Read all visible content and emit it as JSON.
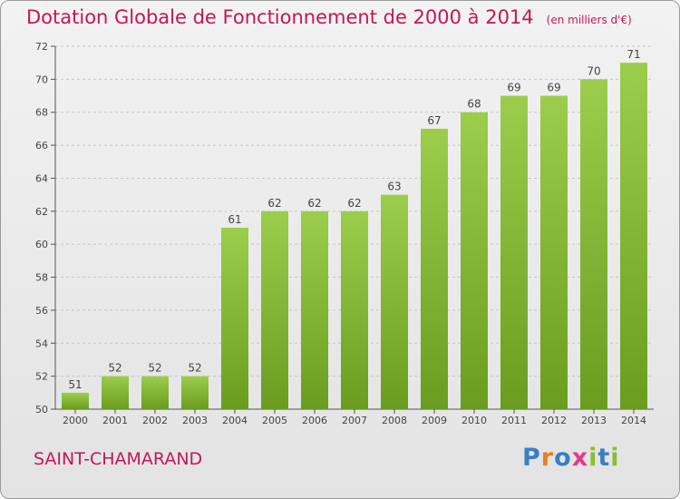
{
  "title": "Dotation Globale de Fonctionnement de 2000 à 2014",
  "subtitle": "(en milliers d'€)",
  "commune": "SAINT-CHAMARAND",
  "logo": {
    "text": "Proxiti",
    "letters": [
      "P",
      "r",
      "o",
      "x",
      "i",
      "t",
      "i"
    ],
    "colors": [
      "#3a7fc1",
      "#e8801a",
      "#3a7fc1",
      "#e23a8a",
      "#8bbf2f",
      "#3a7fc1",
      "#8bbf2f"
    ]
  },
  "colors": {
    "bar_light": "#9ccd4c",
    "bar_dark": "#6a9c1f",
    "title": "#c2185b",
    "grid": "#c8c8c8"
  },
  "chart_data": {
    "type": "bar",
    "title": "Dotation Globale de Fonctionnement de 2000 à 2014",
    "subtitle": "(en milliers d'€)",
    "categories": [
      "2000",
      "2001",
      "2002",
      "2003",
      "2004",
      "2005",
      "2006",
      "2007",
      "2008",
      "2009",
      "2010",
      "2011",
      "2012",
      "2013",
      "2014"
    ],
    "values": [
      51,
      52,
      52,
      52,
      61,
      62,
      62,
      62,
      63,
      67,
      68,
      69,
      69,
      70,
      71
    ],
    "ylim": [
      50,
      72
    ],
    "yticks": [
      50,
      52,
      54,
      56,
      58,
      60,
      62,
      64,
      66,
      68,
      70,
      72
    ],
    "grid": true,
    "xlabel": "",
    "ylabel": ""
  }
}
